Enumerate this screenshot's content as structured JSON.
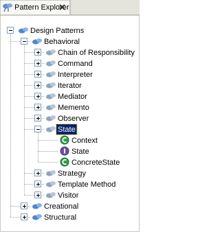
{
  "header": {
    "title": "Pattern Explorer"
  },
  "tree": {
    "label": "Design Patterns",
    "expanded": true,
    "children": [
      {
        "label": "Behavioral",
        "expanded": true,
        "children": [
          {
            "label": "Chain of Responsibility",
            "expanded": false
          },
          {
            "label": "Command",
            "expanded": false
          },
          {
            "label": "Interpreter",
            "expanded": false
          },
          {
            "label": "Iterator",
            "expanded": false
          },
          {
            "label": "Mediator",
            "expanded": false
          },
          {
            "label": "Memento",
            "expanded": false
          },
          {
            "label": "Observer",
            "expanded": false
          },
          {
            "label": "State",
            "expanded": true,
            "selected": true,
            "children": [
              {
                "label": "Context",
                "kind": "class"
              },
              {
                "label": "State",
                "kind": "interface"
              },
              {
                "label": "ConcreteState",
                "kind": "class"
              }
            ]
          },
          {
            "label": "Strategy",
            "expanded": false
          },
          {
            "label": "Template Method",
            "expanded": false
          },
          {
            "label": "Visitor",
            "expanded": false
          }
        ]
      },
      {
        "label": "Creational",
        "expanded": false
      },
      {
        "label": "Structural",
        "expanded": false
      }
    ]
  }
}
